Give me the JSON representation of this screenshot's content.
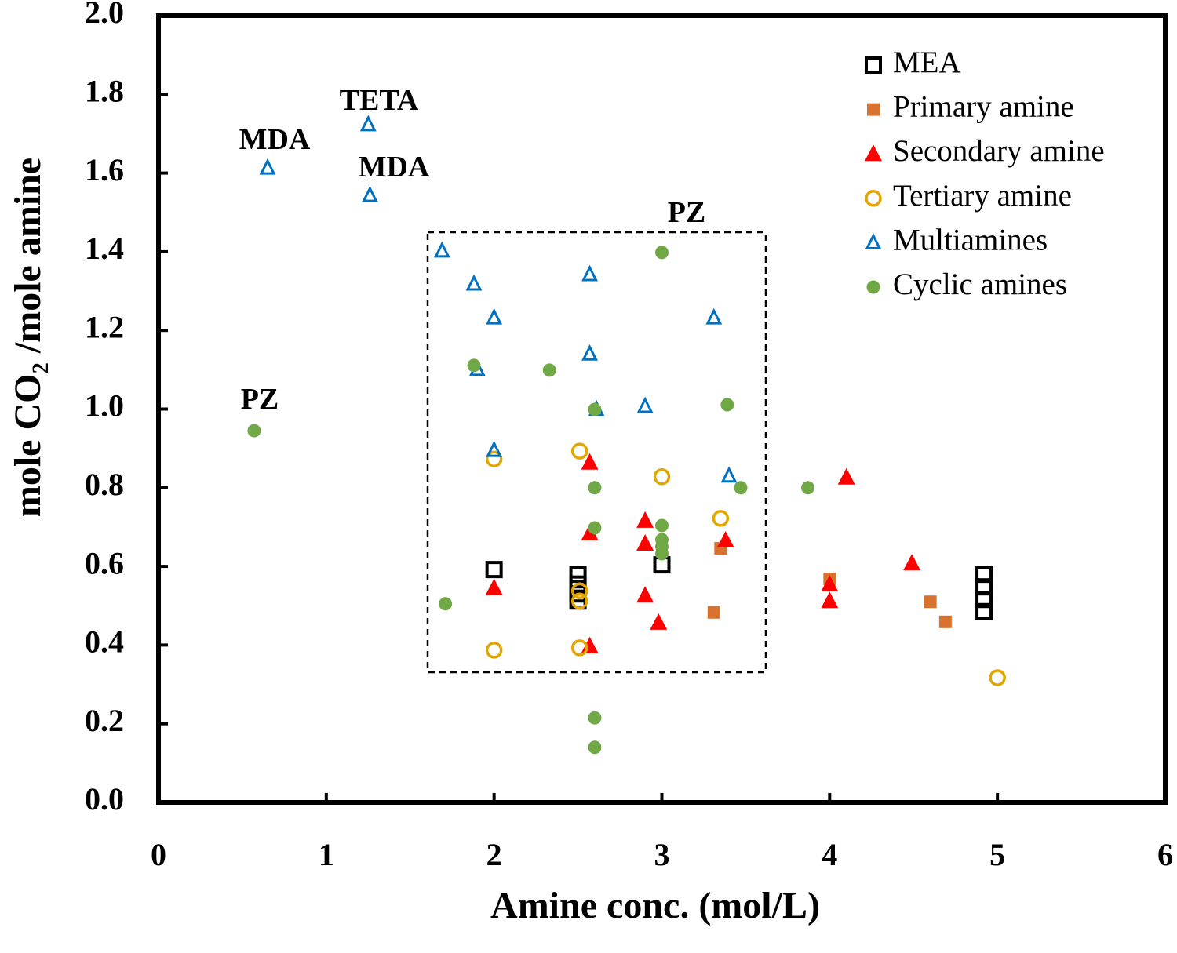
{
  "chart_data": {
    "type": "scatter",
    "x_label": "Amine  conc. (mol/L)",
    "y_label": "mole CO₂ /mole amine",
    "xlim": [
      0,
      6
    ],
    "xticks": [
      0,
      1,
      2,
      3,
      4,
      5,
      6
    ],
    "ylim": [
      0,
      2
    ],
    "yticks": [
      {
        "value": 0,
        "label": "0.0"
      },
      0.2,
      0.4,
      0.6,
      0.8,
      {
        "value": 1,
        "label": "1.0"
      },
      1.2,
      1.4,
      1.6,
      1.8,
      {
        "value": 2,
        "label": "2.0"
      }
    ],
    "legend": "upper right",
    "annotations": [
      "MDA",
      "TETA",
      "MDA",
      "PZ",
      "PZ"
    ],
    "series": [
      {
        "name": "MEA",
        "color": "#000000",
        "marker": "square-open",
        "x": [
          2.0,
          2.5,
          2.5,
          2.5,
          2.5,
          3.0,
          4.92,
          4.92,
          4.92,
          4.92
        ],
        "values": [
          0.592,
          0.58,
          0.555,
          0.53,
          0.512,
          0.604,
          0.58,
          0.548,
          0.516,
          0.485
        ]
      },
      {
        "name": "Primary amine",
        "color": "#d9722f",
        "marker": "square",
        "x": [
          3.35,
          3.31,
          4.0,
          4.6,
          4.69
        ],
        "values": [
          0.646,
          0.483,
          0.568,
          0.51,
          0.459
        ]
      },
      {
        "name": "Secondary amine",
        "color": "#ff0000",
        "marker": "triangle",
        "x": [
          2.0,
          2.57,
          2.57,
          2.57,
          2.9,
          2.9,
          2.9,
          2.98,
          3.38,
          4.0,
          4.0,
          4.1,
          4.49
        ],
        "values": [
          0.545,
          0.864,
          0.684,
          0.397,
          0.716,
          0.658,
          0.526,
          0.457,
          0.666,
          0.554,
          0.512,
          0.826,
          0.608
        ]
      },
      {
        "name": "Tertiary amine",
        "color": "#e3a600",
        "marker": "circle-open",
        "x": [
          2.0,
          2.0,
          2.51,
          2.51,
          2.51,
          2.51,
          3.0,
          3.35,
          5.0
        ],
        "values": [
          0.873,
          0.387,
          0.893,
          0.538,
          0.512,
          0.393,
          0.828,
          0.722,
          0.317
        ]
      },
      {
        "name": "Multiamines",
        "color": "#0070c0",
        "marker": "triangle-open",
        "x": [
          0.65,
          1.25,
          1.26,
          1.69,
          1.88,
          2.0,
          1.9,
          2.0,
          2.57,
          2.57,
          2.61,
          2.9,
          3.31,
          3.4
        ],
        "values": [
          1.613,
          1.723,
          1.543,
          1.402,
          1.318,
          1.232,
          1.101,
          0.895,
          1.342,
          1.14,
          0.999,
          1.007,
          1.232,
          0.83
        ]
      },
      {
        "name": "Cyclic amines",
        "color": "#70a845",
        "marker": "circle",
        "x": [
          0.57,
          1.71,
          1.88,
          2.33,
          2.6,
          2.6,
          2.6,
          2.6,
          2.6,
          3.0,
          3.0,
          3.0,
          3.0,
          3.0,
          3.39,
          3.47,
          3.87
        ],
        "values": [
          0.945,
          0.505,
          1.111,
          1.099,
          0.999,
          0.8,
          0.698,
          0.215,
          0.14,
          1.398,
          0.704,
          0.668,
          0.65,
          0.632,
          1.011,
          0.8,
          0.8
        ]
      }
    ]
  }
}
